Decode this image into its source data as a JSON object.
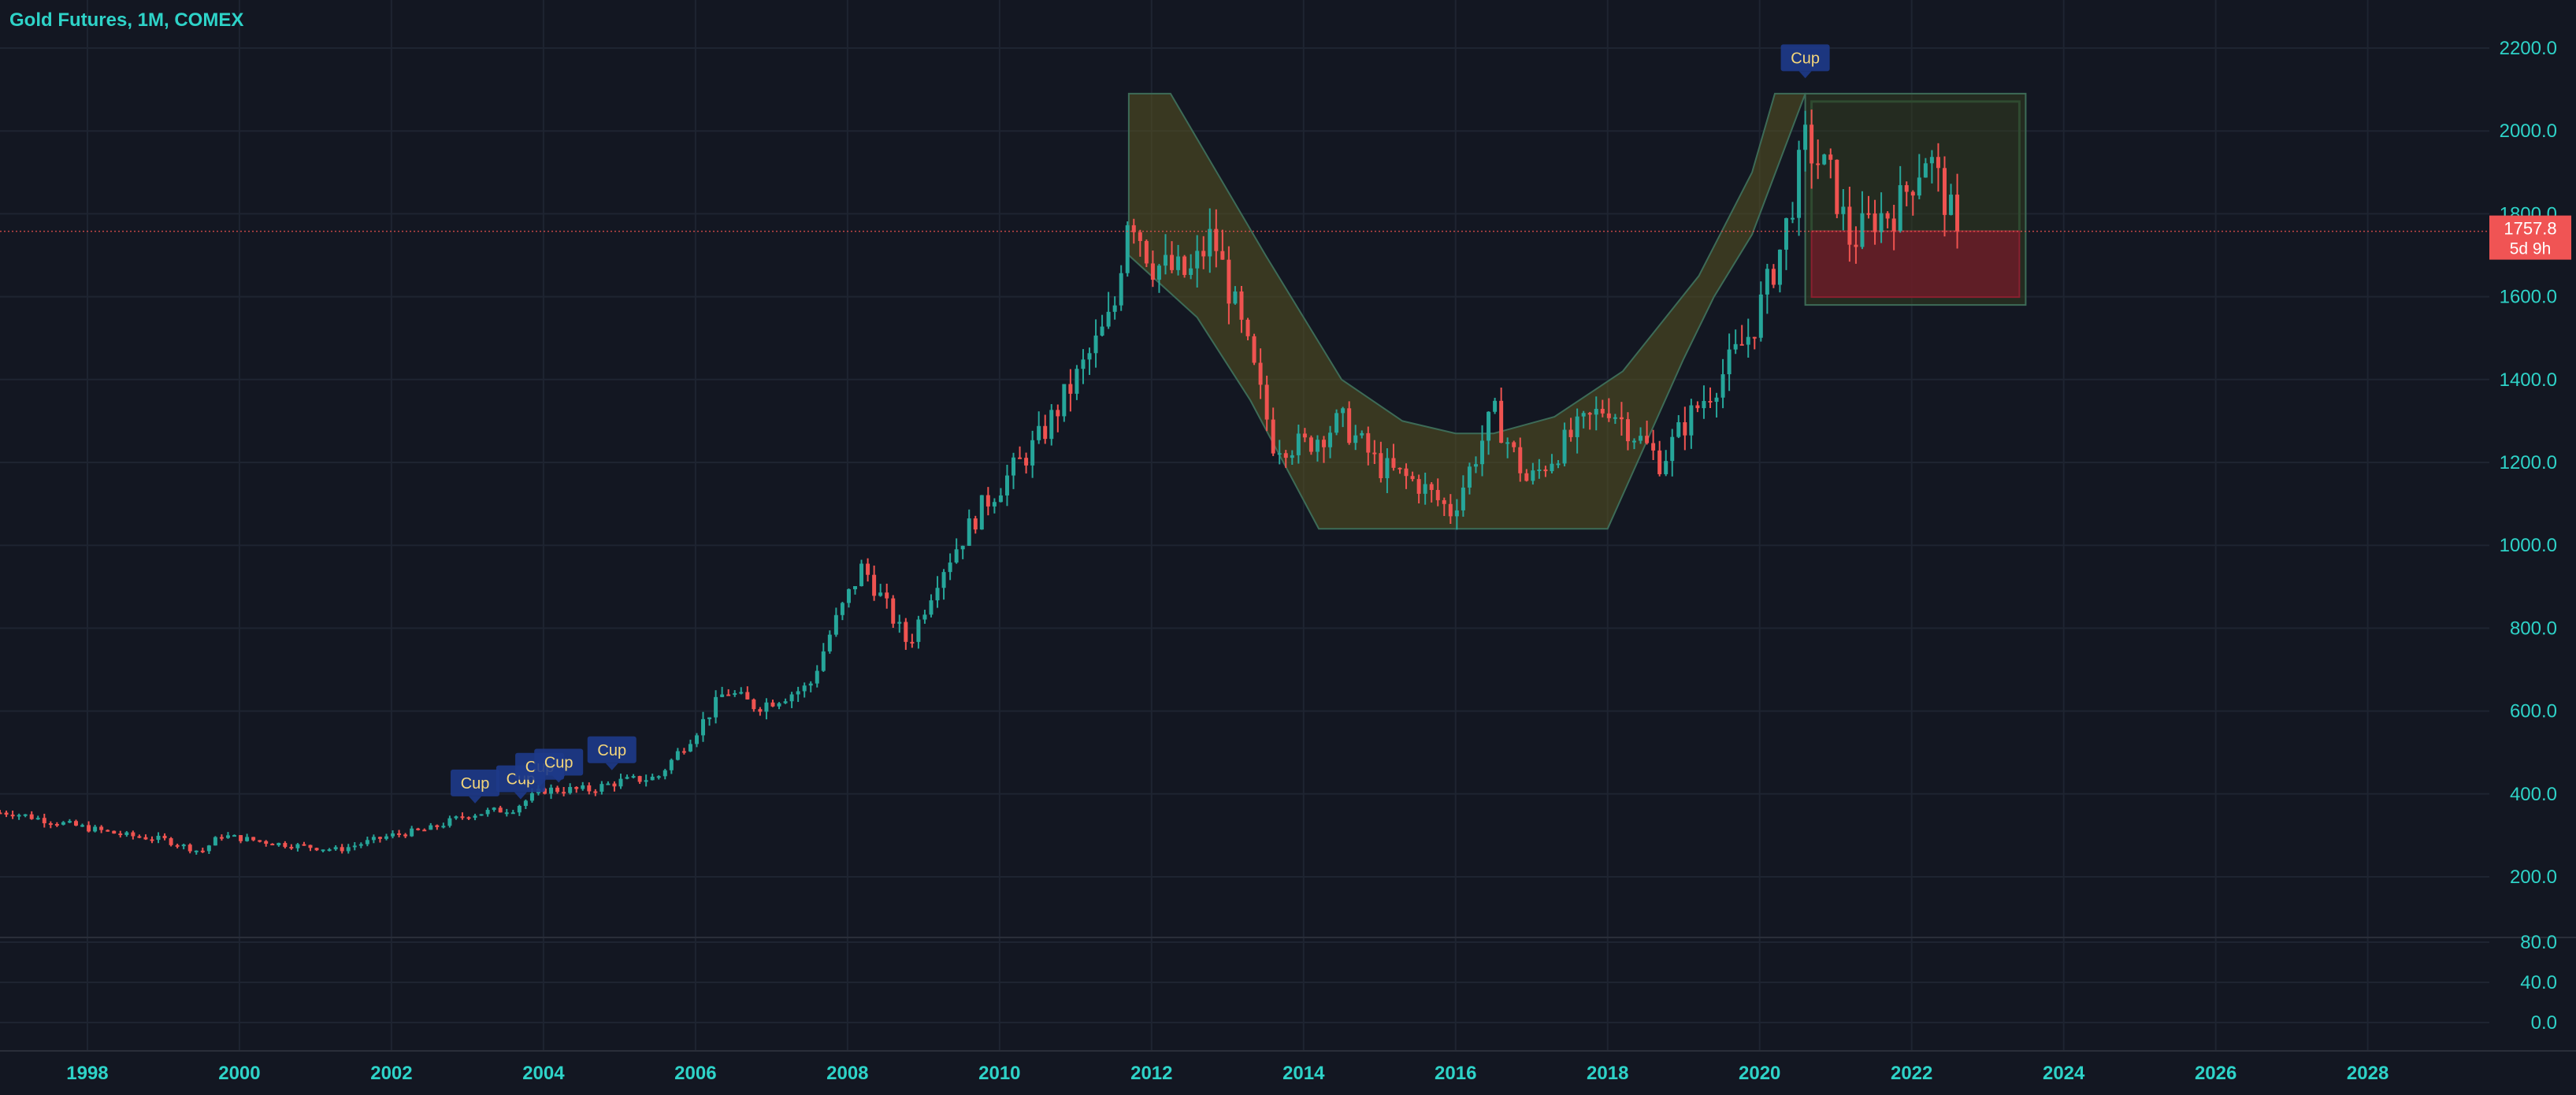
{
  "header": {
    "title": "Gold Futures, 1M, COMEX"
  },
  "colors": {
    "background": "#131722",
    "up": "#26a69a",
    "down": "#ef5350",
    "axis_text": "#2ed3c8",
    "grid": "#1e2431",
    "pattern_fill": "#5a5320",
    "zone_fill": "#6a1c28",
    "label_bg": "#1e3a8a",
    "label_text": "#f5d77a"
  },
  "price_label": {
    "value": "1757.8",
    "countdown": "5d 9h"
  },
  "chart_data": {
    "type": "candlestick",
    "title": "Gold Futures, 1M, COMEX",
    "xlabel": "",
    "ylabel": "",
    "x_ticks": [
      "1998",
      "2000",
      "2002",
      "2004",
      "2006",
      "2008",
      "2010",
      "2012",
      "2014",
      "2016",
      "2018",
      "2020",
      "2022",
      "2024",
      "2026",
      "2028"
    ],
    "y_ticks": [
      "2200.0",
      "2000.0",
      "1800.0",
      "1600.0",
      "1400.0",
      "1200.0",
      "1000.0",
      "800.0",
      "600.0",
      "400.0",
      "200.0"
    ],
    "lower_pane_ticks": [
      "80.0",
      "40.0",
      "0.0"
    ],
    "xlim": [
      1996.85,
      2029.6
    ],
    "ylim": [
      100,
      2260
    ],
    "grid": true,
    "last_price": 1757.8,
    "series_close_anchors": [
      [
        1997.0,
        355
      ],
      [
        1997.5,
        335
      ],
      [
        1998.5,
        300
      ],
      [
        1999.0,
        290
      ],
      [
        1999.5,
        260
      ],
      [
        1999.75,
        300
      ],
      [
        2000.5,
        280
      ],
      [
        2001.3,
        265
      ],
      [
        2002.0,
        300
      ],
      [
        2002.5,
        315
      ],
      [
        2003.0,
        350
      ],
      [
        2003.6,
        365
      ],
      [
        2004.0,
        410
      ],
      [
        2004.6,
        410
      ],
      [
        2005.0,
        430
      ],
      [
        2005.5,
        440
      ],
      [
        2006.0,
        550
      ],
      [
        2006.4,
        650
      ],
      [
        2006.8,
        610
      ],
      [
        2007.5,
        660
      ],
      [
        2007.8,
        800
      ],
      [
        2008.2,
        950
      ],
      [
        2008.8,
        760
      ],
      [
        2009.2,
        930
      ],
      [
        2009.8,
        1100
      ],
      [
        2010.5,
        1250
      ],
      [
        2011.0,
        1400
      ],
      [
        2011.5,
        1560
      ],
      [
        2011.7,
        1820
      ],
      [
        2012.0,
        1680
      ],
      [
        2012.5,
        1650
      ],
      [
        2012.8,
        1750
      ],
      [
        2013.3,
        1450
      ],
      [
        2013.6,
        1250
      ],
      [
        2014.0,
        1240
      ],
      [
        2014.5,
        1300
      ],
      [
        2015.0,
        1190
      ],
      [
        2015.5,
        1150
      ],
      [
        2015.95,
        1080
      ],
      [
        2016.5,
        1320
      ],
      [
        2016.95,
        1150
      ],
      [
        2017.5,
        1260
      ],
      [
        2018.0,
        1340
      ],
      [
        2018.7,
        1200
      ],
      [
        2019.0,
        1290
      ],
      [
        2019.5,
        1410
      ],
      [
        2019.9,
        1520
      ],
      [
        2020.3,
        1730
      ],
      [
        2020.6,
        1970
      ],
      [
        2020.95,
        1880
      ],
      [
        2021.2,
        1730
      ],
      [
        2021.5,
        1790
      ],
      [
        2021.8,
        1810
      ],
      [
        2022.2,
        1950
      ],
      [
        2022.6,
        1757.8
      ]
    ],
    "annotations": [
      {
        "label": "Cup",
        "x": 2003.1,
        "y": 360
      },
      {
        "label": "Cup",
        "x": 2003.7,
        "y": 370
      },
      {
        "label": "Cup",
        "x": 2003.95,
        "y": 400
      },
      {
        "label": "Cup",
        "x": 2004.2,
        "y": 410
      },
      {
        "label": "Cup",
        "x": 2004.9,
        "y": 440
      },
      {
        "label": "Cup",
        "x": 2020.6,
        "y": 2110
      }
    ],
    "cup_pattern": {
      "outer": [
        [
          2011.7,
          2090
        ],
        [
          2012.25,
          2090
        ],
        [
          2013.5,
          1700
        ],
        [
          2014.5,
          1400
        ],
        [
          2015.3,
          1300
        ],
        [
          2016.0,
          1270
        ],
        [
          2016.5,
          1270
        ],
        [
          2017.3,
          1310
        ],
        [
          2018.2,
          1420
        ],
        [
          2019.2,
          1650
        ],
        [
          2019.9,
          1900
        ],
        [
          2020.2,
          2090
        ],
        [
          2020.6,
          2090
        ]
      ],
      "inner": [
        [
          2020.6,
          2090
        ],
        [
          2019.9,
          1750
        ],
        [
          2019.4,
          1600
        ],
        [
          2019.0,
          1450
        ],
        [
          2018.0,
          1040
        ],
        [
          2014.2,
          1040
        ],
        [
          2013.3,
          1350
        ],
        [
          2012.6,
          1550
        ],
        [
          2011.7,
          1700
        ]
      ]
    },
    "handle_box": {
      "x0": 2020.6,
      "x1": 2023.5,
      "y_top": 2090,
      "y_bottom": 1580,
      "split": 1757.8
    }
  }
}
